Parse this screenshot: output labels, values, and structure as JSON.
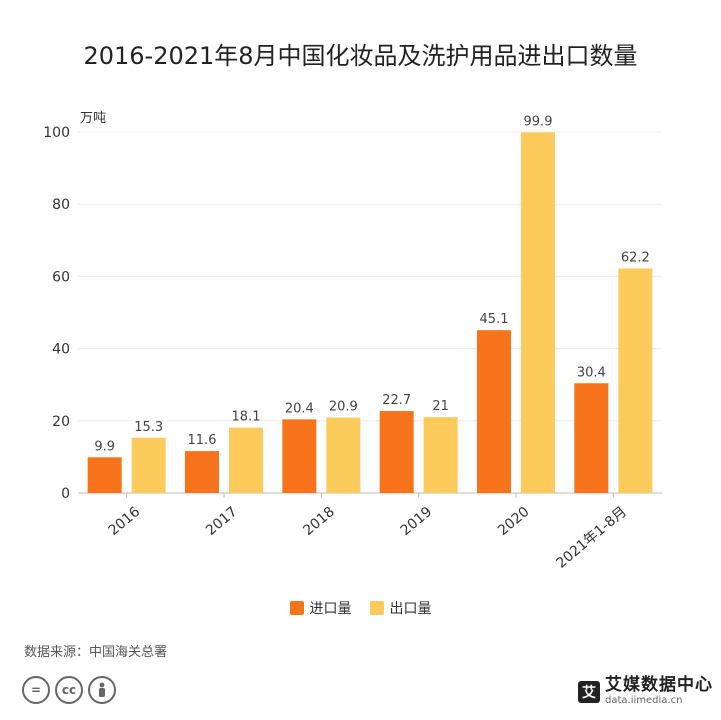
{
  "title": "2016-2021年8月中国化妆品及洗护用品进出口数量",
  "source": "数据来源：中国海关总署",
  "brand": {
    "name": "艾媒数据中心",
    "url": "data.iimedia.cn",
    "logo_char": "艾"
  },
  "cc_icons": [
    "equal-icon",
    "cc-icon",
    "person-icon"
  ],
  "chart_data": {
    "type": "bar",
    "title": "2016-2021年8月中国化妆品及洗护用品进出口数量",
    "unit_label": "万吨",
    "categories": [
      "2016",
      "2017",
      "2018",
      "2019",
      "2020",
      "2021年1-8月"
    ],
    "series": [
      {
        "name": "进口量",
        "color": "#f7731c",
        "values": [
          9.9,
          11.6,
          20.4,
          22.7,
          45.1,
          30.4
        ],
        "labels": [
          "9.9",
          "11.6",
          "20.4",
          "22.7",
          "45.1",
          "30.4"
        ]
      },
      {
        "name": "出口量",
        "color": "#fccb5c",
        "values": [
          15.3,
          18.1,
          20.9,
          21,
          99.9,
          62.2
        ],
        "labels": [
          "15.3",
          "18.1",
          "20.9",
          "21",
          "99.9",
          "62.2"
        ]
      }
    ],
    "ylim": [
      0,
      100
    ],
    "yticks": [
      0,
      20,
      40,
      60,
      80,
      100
    ],
    "grid": true,
    "legend_position": "bottom"
  }
}
